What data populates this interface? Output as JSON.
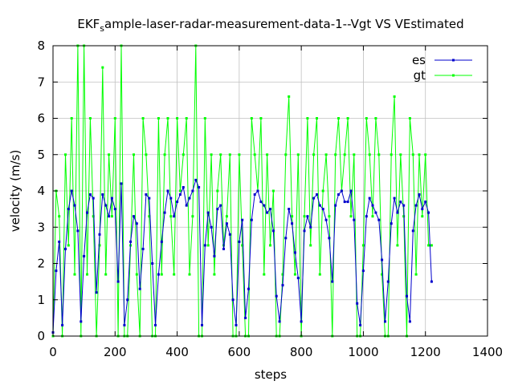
{
  "chart_data": {
    "type": "line",
    "title": {
      "main": "EKF",
      "sub": "s",
      "rest": "ample-laser-radar-measurement-data-1--Vgt VS VEstimated"
    },
    "xlabel": "steps",
    "ylabel": "velocity (m/s)",
    "xlim": [
      0,
      1400
    ],
    "ylim": [
      0,
      8
    ],
    "xticks": [
      0,
      200,
      400,
      600,
      800,
      1000,
      1200,
      1400
    ],
    "yticks": [
      0,
      1,
      2,
      3,
      4,
      5,
      6,
      7,
      8
    ],
    "grid": true,
    "legend_position": "top-right",
    "series": [
      {
        "name": "es",
        "color": "#0000cc",
        "x": [
          0,
          10,
          20,
          30,
          40,
          50,
          60,
          70,
          80,
          90,
          100,
          110,
          120,
          130,
          140,
          150,
          160,
          170,
          180,
          190,
          200,
          210,
          220,
          230,
          240,
          250,
          260,
          270,
          280,
          290,
          300,
          310,
          320,
          330,
          340,
          350,
          360,
          370,
          380,
          390,
          400,
          410,
          420,
          430,
          440,
          450,
          460,
          470,
          480,
          490,
          500,
          510,
          520,
          530,
          540,
          550,
          560,
          570,
          580,
          590,
          600,
          610,
          620,
          630,
          640,
          650,
          660,
          670,
          680,
          690,
          700,
          710,
          720,
          730,
          740,
          750,
          760,
          770,
          780,
          790,
          800,
          810,
          820,
          830,
          840,
          850,
          860,
          870,
          880,
          890,
          900,
          910,
          920,
          930,
          940,
          950,
          960,
          970,
          980,
          990,
          1000,
          1010,
          1020,
          1030,
          1040,
          1050,
          1060,
          1070,
          1080,
          1090,
          1100,
          1110,
          1120,
          1130,
          1140,
          1150,
          1160,
          1170,
          1180,
          1190,
          1200,
          1210,
          1220
        ],
        "values": [
          0.1,
          1.8,
          2.6,
          0.3,
          2.4,
          3.5,
          4.0,
          3.6,
          2.9,
          0.4,
          2.2,
          3.4,
          3.9,
          3.8,
          1.2,
          2.8,
          3.9,
          3.6,
          3.3,
          3.8,
          3.5,
          1.5,
          4.2,
          0.3,
          1.0,
          2.6,
          3.3,
          3.1,
          1.3,
          2.4,
          3.9,
          3.8,
          2.0,
          0.3,
          1.7,
          2.6,
          3.4,
          4.0,
          3.8,
          3.3,
          3.7,
          3.9,
          4.1,
          3.6,
          3.8,
          4.0,
          4.3,
          4.1,
          0.3,
          2.5,
          3.4,
          3.0,
          2.2,
          3.5,
          3.6,
          2.4,
          3.1,
          2.8,
          1.0,
          0.3,
          2.6,
          3.2,
          0.5,
          1.3,
          3.2,
          3.9,
          4.0,
          3.7,
          3.6,
          3.4,
          3.5,
          2.9,
          1.1,
          0.4,
          1.4,
          2.7,
          3.5,
          3.1,
          2.3,
          1.6,
          0.4,
          2.9,
          3.3,
          3.0,
          3.8,
          3.9,
          3.6,
          3.5,
          3.2,
          2.7,
          1.5,
          3.6,
          3.9,
          4.0,
          3.7,
          3.7,
          4.0,
          3.2,
          0.9,
          0.3,
          1.8,
          3.3,
          3.8,
          3.6,
          3.4,
          3.2,
          2.1,
          0.4,
          1.5,
          3.1,
          3.8,
          3.4,
          3.7,
          3.6,
          1.1,
          0.4,
          2.9,
          3.6,
          3.9,
          3.5,
          3.7,
          3.4,
          1.5
        ]
      },
      {
        "name": "gt",
        "color": "#00ff00",
        "x": [
          0,
          10,
          20,
          30,
          40,
          50,
          60,
          70,
          80,
          90,
          100,
          110,
          120,
          130,
          140,
          150,
          160,
          170,
          180,
          190,
          200,
          210,
          220,
          230,
          240,
          250,
          260,
          270,
          280,
          290,
          300,
          310,
          320,
          330,
          340,
          350,
          360,
          370,
          380,
          390,
          400,
          410,
          420,
          430,
          440,
          450,
          460,
          470,
          480,
          490,
          500,
          510,
          520,
          530,
          540,
          550,
          560,
          570,
          580,
          590,
          600,
          610,
          620,
          630,
          640,
          650,
          660,
          670,
          680,
          690,
          700,
          710,
          720,
          730,
          740,
          750,
          760,
          770,
          780,
          790,
          800,
          810,
          820,
          830,
          840,
          850,
          860,
          870,
          880,
          890,
          900,
          910,
          920,
          930,
          940,
          950,
          960,
          970,
          980,
          990,
          1000,
          1010,
          1020,
          1030,
          1040,
          1050,
          1060,
          1070,
          1080,
          1090,
          1100,
          1110,
          1120,
          1130,
          1140,
          1150,
          1160,
          1170,
          1180,
          1190,
          1200,
          1210,
          1220
        ],
        "values": [
          0.0,
          4.0,
          3.3,
          0.0,
          5.0,
          2.5,
          6.0,
          1.7,
          8.0,
          0.0,
          8.0,
          1.7,
          6.0,
          3.3,
          0.0,
          2.5,
          7.4,
          1.7,
          5.0,
          3.3,
          6.0,
          0.0,
          8.0,
          0.0,
          0.0,
          2.5,
          5.0,
          1.7,
          0.0,
          6.0,
          5.0,
          3.3,
          0.0,
          0.0,
          6.0,
          1.7,
          5.0,
          6.0,
          3.3,
          1.7,
          6.0,
          4.0,
          5.0,
          6.0,
          1.7,
          3.3,
          8.0,
          0.0,
          0.0,
          6.0,
          2.5,
          5.0,
          1.7,
          4.0,
          5.0,
          2.5,
          3.3,
          5.0,
          0.0,
          0.0,
          5.0,
          2.5,
          0.0,
          0.0,
          6.0,
          5.0,
          4.0,
          6.0,
          1.7,
          5.0,
          2.5,
          4.0,
          0.0,
          0.0,
          1.7,
          5.0,
          6.6,
          3.3,
          1.7,
          5.0,
          0.0,
          3.3,
          6.0,
          2.5,
          5.0,
          6.0,
          1.7,
          4.0,
          5.0,
          3.3,
          0.0,
          5.0,
          6.0,
          4.0,
          5.0,
          6.0,
          3.3,
          5.0,
          0.0,
          0.0,
          2.5,
          6.0,
          5.0,
          3.3,
          6.0,
          5.0,
          1.7,
          0.0,
          0.0,
          5.0,
          6.6,
          2.5,
          5.0,
          3.3,
          0.0,
          6.0,
          5.0,
          1.7,
          5.0,
          3.3,
          5.0,
          2.5,
          2.5
        ]
      }
    ]
  }
}
